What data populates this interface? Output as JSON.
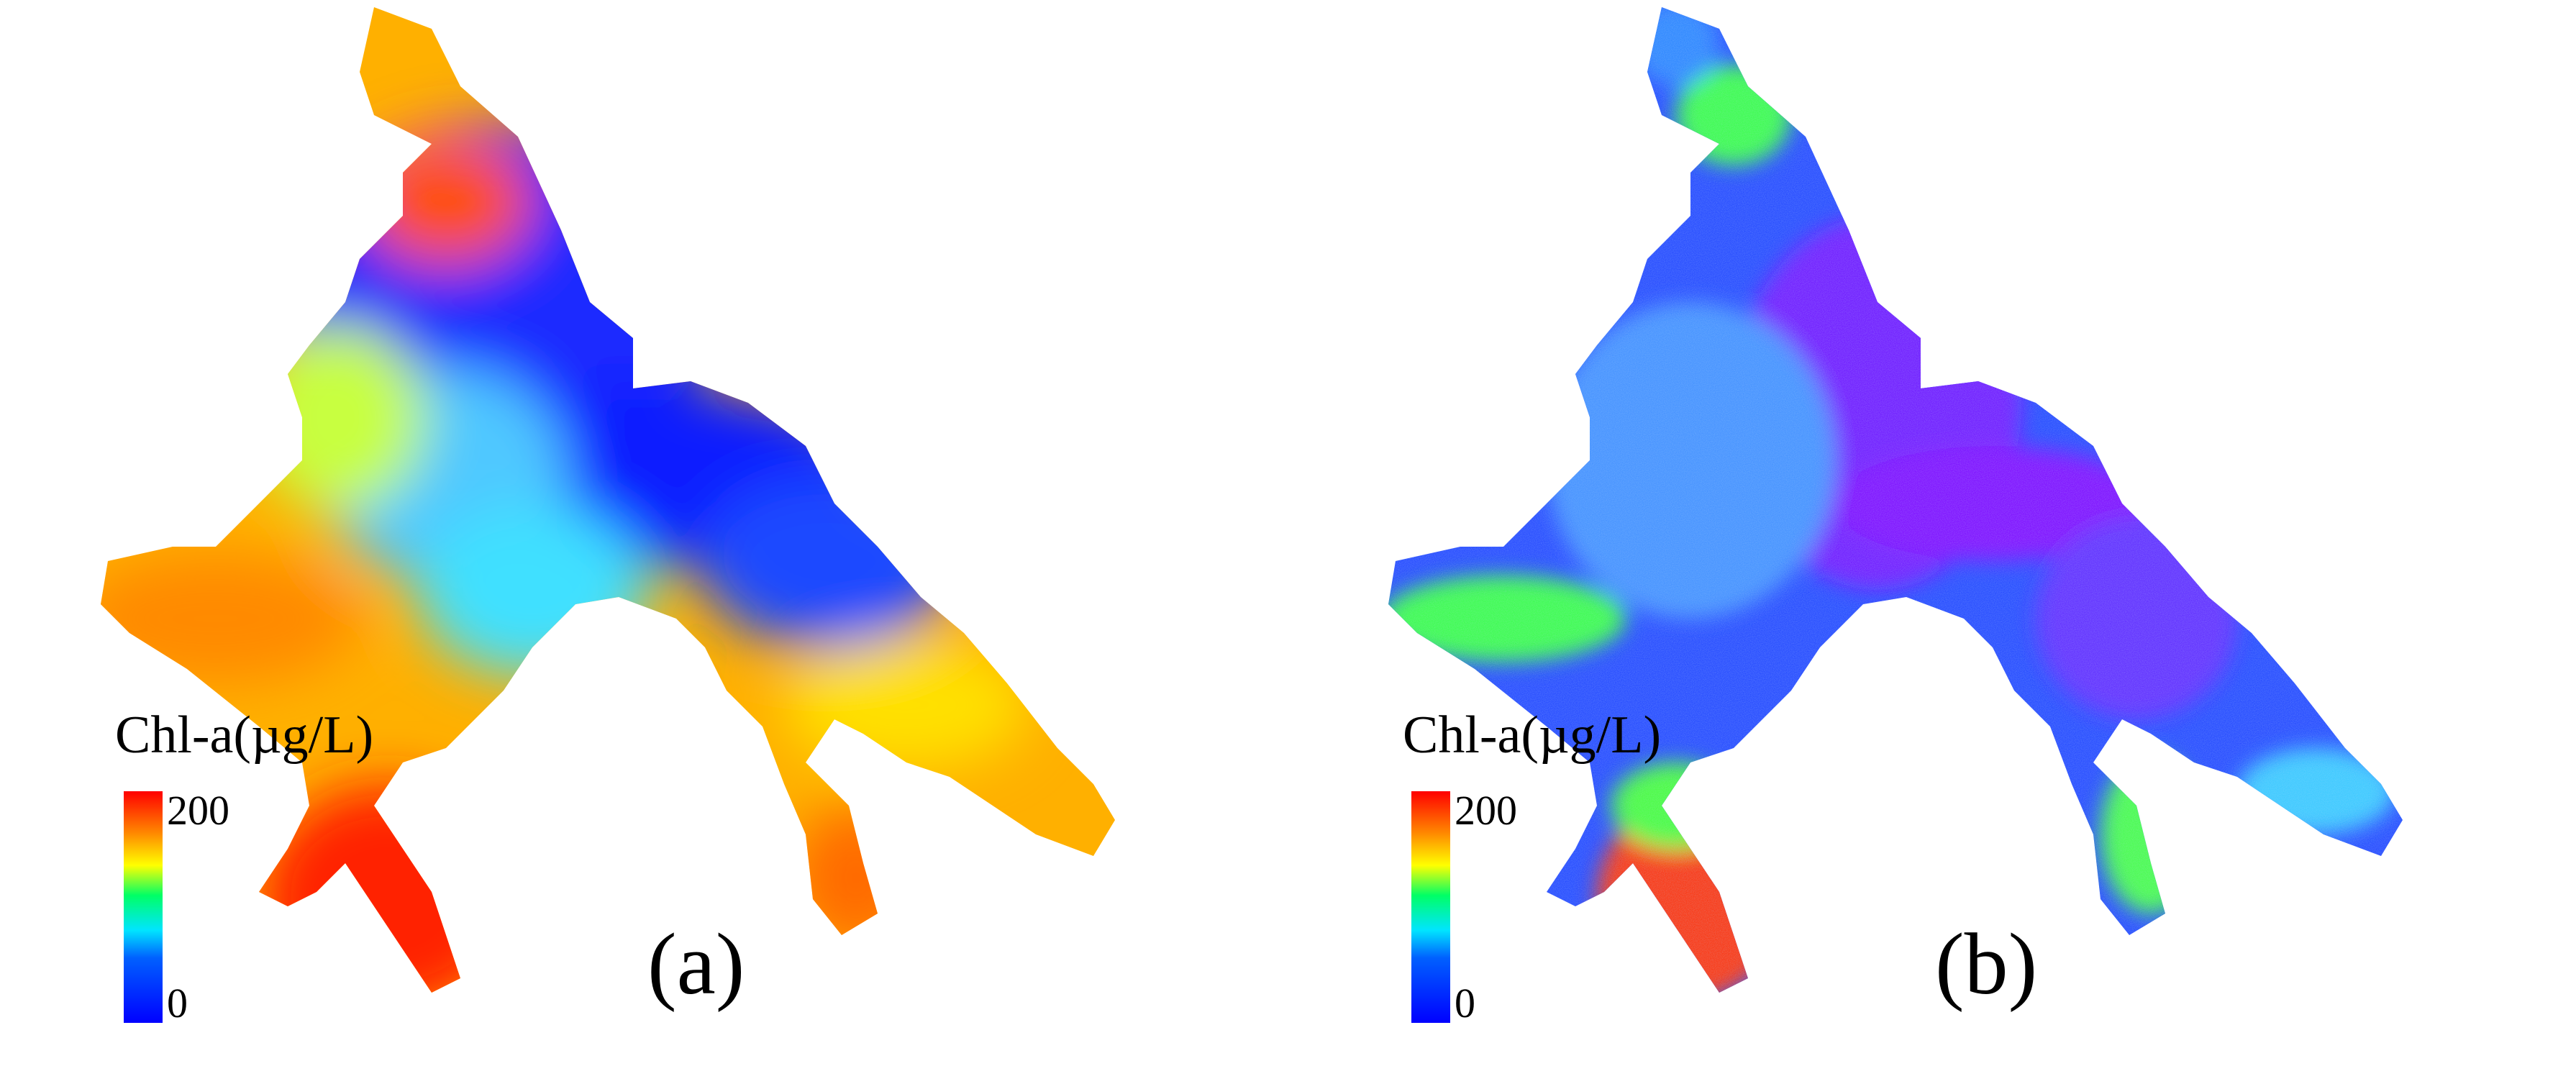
{
  "panels": [
    {
      "label": "(a)",
      "legend": {
        "title": "Chl-a(µg/L)",
        "max": "200",
        "min": "0"
      }
    },
    {
      "label": "(b)",
      "legend": {
        "title": "Chl-a(µg/L)",
        "max": "200",
        "min": "0"
      }
    }
  ],
  "colors": {
    "scale_low": "#0000ff",
    "scale_mid_low": "#00e5ff",
    "scale_mid": "#00ff66",
    "scale_mid_high": "#ffff00",
    "scale_high": "#ff0000"
  }
}
